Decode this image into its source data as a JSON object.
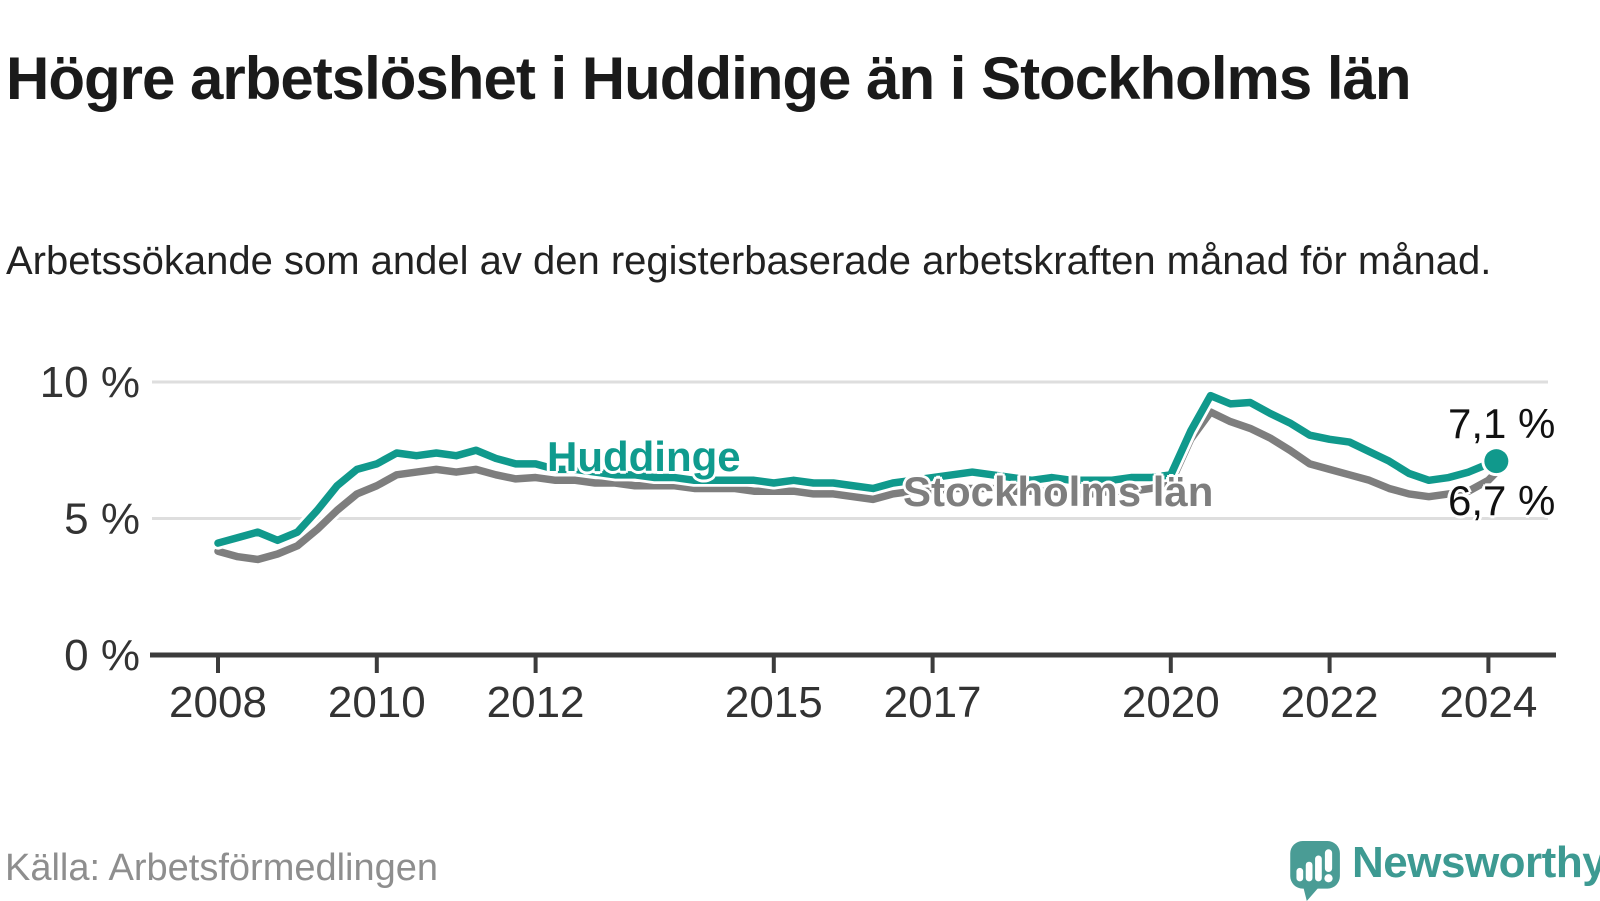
{
  "header": {
    "title": "Högre arbetslöshet i Huddinge än i Stockholms län",
    "subtitle": "Arbetssökande som andel av den registerbaserade arbetskraften månad för månad."
  },
  "chart_data": {
    "type": "line",
    "title": "Högre arbetslöshet i Huddinge än i Stockholms län",
    "xlabel": "",
    "ylabel": "",
    "unit": "%",
    "grid": "horizontal-gridlines",
    "legend": "inline-labels-on-lines",
    "ylim": [
      0,
      10.5
    ],
    "xlim": [
      2007.4,
      2024.7
    ],
    "yticks": [
      {
        "value": 0,
        "label": "0 %"
      },
      {
        "value": 5,
        "label": "5 %"
      },
      {
        "value": 10,
        "label": "10 %"
      }
    ],
    "xticks": [
      {
        "value": 2008,
        "label": "2008"
      },
      {
        "value": 2010,
        "label": "2010"
      },
      {
        "value": 2012,
        "label": "2012"
      },
      {
        "value": 2015,
        "label": "2015"
      },
      {
        "value": 2017,
        "label": "2017"
      },
      {
        "value": 2020,
        "label": "2020"
      },
      {
        "value": 2022,
        "label": "2022"
      },
      {
        "value": 2024,
        "label": "2024"
      }
    ],
    "x": [
      2008.0,
      2008.25,
      2008.5,
      2008.75,
      2009.0,
      2009.25,
      2009.5,
      2009.75,
      2010.0,
      2010.25,
      2010.5,
      2010.75,
      2011.0,
      2011.25,
      2011.5,
      2011.75,
      2012.0,
      2012.25,
      2012.5,
      2012.75,
      2013.0,
      2013.25,
      2013.5,
      2013.75,
      2014.0,
      2014.25,
      2014.5,
      2014.75,
      2015.0,
      2015.25,
      2015.5,
      2015.75,
      2016.0,
      2016.25,
      2016.5,
      2016.75,
      2017.0,
      2017.25,
      2017.5,
      2017.75,
      2018.0,
      2018.25,
      2018.5,
      2018.75,
      2019.0,
      2019.25,
      2019.5,
      2019.75,
      2020.0,
      2020.25,
      2020.5,
      2020.75,
      2021.0,
      2021.25,
      2021.5,
      2021.75,
      2022.0,
      2022.25,
      2022.5,
      2022.75,
      2023.0,
      2023.25,
      2023.5,
      2023.75,
      2024.0,
      2024.1
    ],
    "series": [
      {
        "name": "Huddinge",
        "color": "#10998c",
        "end_label": "7,1 %",
        "end_value": 7.1,
        "values": [
          4.1,
          4.3,
          4.5,
          4.2,
          4.5,
          5.3,
          6.2,
          6.8,
          7.0,
          7.4,
          7.3,
          7.4,
          7.3,
          7.5,
          7.2,
          7.0,
          7.0,
          6.8,
          6.8,
          6.7,
          6.6,
          6.6,
          6.5,
          6.5,
          6.4,
          6.4,
          6.4,
          6.4,
          6.3,
          6.4,
          6.3,
          6.3,
          6.2,
          6.1,
          6.3,
          6.4,
          6.5,
          6.6,
          6.7,
          6.6,
          6.5,
          6.4,
          6.5,
          6.4,
          6.4,
          6.4,
          6.5,
          6.5,
          6.6,
          8.2,
          9.5,
          9.2,
          9.25,
          8.85,
          8.5,
          8.05,
          7.9,
          7.8,
          7.45,
          7.1,
          6.65,
          6.4,
          6.5,
          6.7,
          7.0,
          7.1
        ]
      },
      {
        "name": "Stockholms län",
        "color": "#7e7e7e",
        "end_label": "6,7 %",
        "end_value": 6.7,
        "values": [
          3.8,
          3.6,
          3.5,
          3.7,
          4.0,
          4.6,
          5.3,
          5.9,
          6.2,
          6.6,
          6.7,
          6.8,
          6.7,
          6.8,
          6.6,
          6.45,
          6.5,
          6.4,
          6.4,
          6.3,
          6.3,
          6.2,
          6.2,
          6.2,
          6.1,
          6.1,
          6.1,
          6.0,
          6.0,
          6.0,
          5.9,
          5.9,
          5.8,
          5.7,
          5.9,
          6.0,
          6.0,
          6.1,
          6.1,
          6.1,
          6.0,
          6.0,
          6.0,
          5.9,
          5.9,
          6.0,
          6.0,
          6.1,
          6.3,
          7.9,
          8.9,
          8.55,
          8.3,
          7.95,
          7.5,
          7.0,
          6.8,
          6.6,
          6.4,
          6.1,
          5.9,
          5.8,
          5.9,
          6.0,
          6.4,
          6.7
        ]
      }
    ]
  },
  "footer": {
    "source": "Källa: Arbetsförmedlingen",
    "logo_text": "Newsworthy"
  },
  "colors": {
    "huddinge_line": "#10998c",
    "stockholm_line": "#7e7e7e",
    "gridline": "#dedede",
    "axis": "#3c3c3c",
    "tick_label": "#333333",
    "title": "#1a1a1a",
    "source_text": "#8e8e8e",
    "logo_teal": "#4a9c95"
  }
}
